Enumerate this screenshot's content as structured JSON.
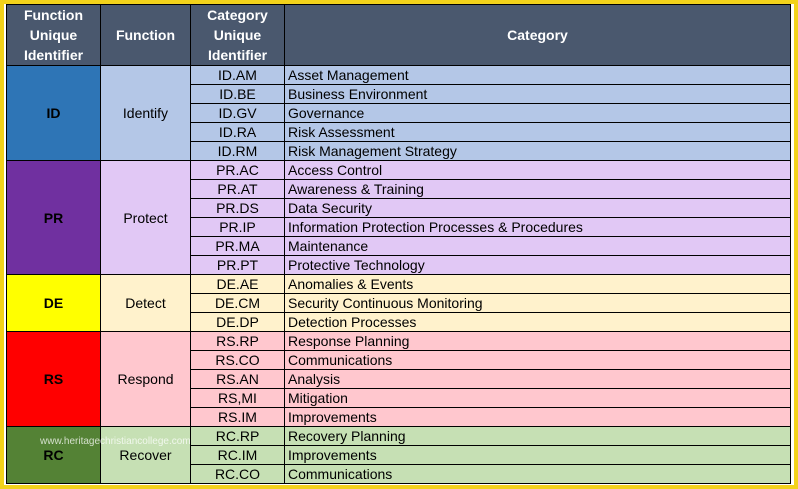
{
  "headers": {
    "function_id": "Function Unique Identifier",
    "function": "Function",
    "category_id": "Category Unique Identifier",
    "category": "Category"
  },
  "functions": [
    {
      "id": "ID",
      "name": "Identify",
      "id_color": "#2e75b6",
      "name_color": "#b4c7e7",
      "row_color": "#b4c7e7",
      "categories": [
        {
          "id": "ID.AM",
          "name": "Asset Management"
        },
        {
          "id": "ID.BE",
          "name": "Business Environment"
        },
        {
          "id": "ID.GV",
          "name": "Governance"
        },
        {
          "id": "ID.RA",
          "name": "Risk Assessment"
        },
        {
          "id": "ID.RM",
          "name": "Risk Management Strategy"
        }
      ]
    },
    {
      "id": "PR",
      "name": "Protect",
      "id_color": "#7030a0",
      "name_color": "#e1c8f5",
      "row_color": "#e1c8f5",
      "categories": [
        {
          "id": "PR.AC",
          "name": "Access Control"
        },
        {
          "id": "PR.AT",
          "name": "Awareness & Training"
        },
        {
          "id": "PR.DS",
          "name": "Data Security"
        },
        {
          "id": "PR.IP",
          "name": "Information Protection Processes & Procedures"
        },
        {
          "id": "PR.MA",
          "name": "Maintenance"
        },
        {
          "id": "PR.PT",
          "name": "Protective Technology"
        }
      ]
    },
    {
      "id": "DE",
      "name": "Detect",
      "id_color": "#ffff00",
      "name_color": "#fff2cc",
      "row_color": "#fff2cc",
      "categories": [
        {
          "id": "DE.AE",
          "name": "Anomalies & Events"
        },
        {
          "id": "DE.CM",
          "name": "Security Continuous Monitoring"
        },
        {
          "id": "DE.DP",
          "name": "Detection Processes"
        }
      ]
    },
    {
      "id": "RS",
      "name": "Respond",
      "id_color": "#ff0000",
      "name_color": "#ffc7ce",
      "row_color": "#ffc7ce",
      "categories": [
        {
          "id": "RS.RP",
          "name": "Response Planning"
        },
        {
          "id": "RS.CO",
          "name": "Communications"
        },
        {
          "id": "RS.AN",
          "name": "Analysis"
        },
        {
          "id": "RS,MI",
          "name": "Mitigation"
        },
        {
          "id": "RS.IM",
          "name": "Improvements"
        }
      ]
    },
    {
      "id": "RC",
      "name": "Recover",
      "id_color": "#548235",
      "name_color": "#c6e0b4",
      "row_color": "#c6e0b4",
      "categories": [
        {
          "id": "RC.RP",
          "name": "Recovery Planning"
        },
        {
          "id": "RC.IM",
          "name": "Improvements"
        },
        {
          "id": "RC.CO",
          "name": "Communications"
        }
      ]
    }
  ],
  "watermark": "www.heritagechristiancollege.com"
}
